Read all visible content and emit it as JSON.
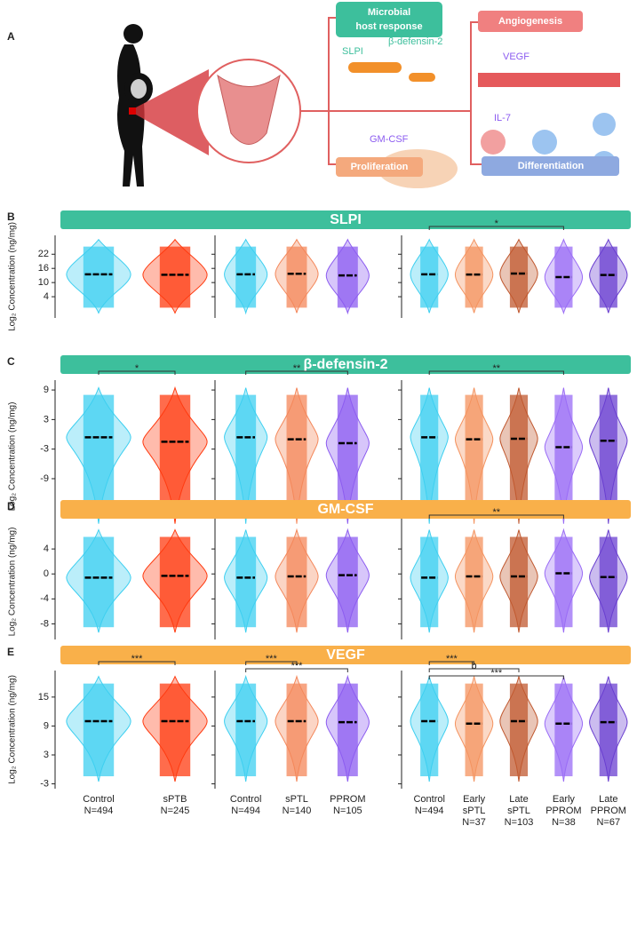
{
  "panel_a": {
    "letter": "A",
    "microbial_title": [
      "Microbial",
      "host response"
    ],
    "slpi": "SLPI",
    "bdef": "β-defensin-2",
    "angiogenesis": "Angiogenesis",
    "vegf": "VEGF",
    "gmcsf": "GM-CSF",
    "il7": "IL-7",
    "proliferation": "Proliferation",
    "differentiation": "Differentiation"
  },
  "x_labels": [
    [
      [
        "Control",
        "N=494"
      ],
      [
        "sPTB",
        "N=245"
      ]
    ],
    [
      [
        "Control",
        "N=494"
      ],
      [
        "sPTL",
        "N=140"
      ],
      [
        "PPROM",
        "N=105"
      ]
    ],
    [
      [
        "Control",
        "N=494"
      ],
      [
        "Early",
        "sPTL",
        "N=37"
      ],
      [
        "Late",
        "sPTL",
        "N=103"
      ],
      [
        "Early",
        "PPROM",
        "N=38"
      ],
      [
        "Late",
        "PPROM",
        "N=67"
      ]
    ]
  ],
  "chart_data": [
    {
      "type": "violin",
      "panel": "B",
      "title": "SLPI",
      "title_color": "#3dbf9c",
      "ylabel": "Log₂ Concentration (ng/mg)",
      "ylim": [
        -5,
        30
      ],
      "yticks": [
        4,
        10,
        16,
        22
      ],
      "groups": [
        {
          "colors": [
            "#3dcff0",
            "#ff3b10"
          ],
          "medians": [
            13.5,
            13.3
          ]
        },
        {
          "colors": [
            "#3dcff0",
            "#f4875a",
            "#8c5cf0"
          ],
          "medians": [
            13.5,
            13.7,
            13
          ]
        },
        {
          "colors": [
            "#3dcff0",
            "#f4935f",
            "#c0582f",
            "#9a6cf5",
            "#6a3fd0"
          ],
          "medians": [
            13.5,
            13.4,
            13.8,
            12.3,
            13.2
          ]
        }
      ],
      "comparisons": [
        {
          "group": 2,
          "between": [
            0,
            3
          ],
          "label": "*"
        }
      ]
    },
    {
      "type": "violin",
      "panel": "C",
      "title": "β-defensin-2",
      "title_color": "#3dbf9c",
      "ylabel": "Log₂ Concentration (ng/mg)",
      "ylim": [
        -20,
        11
      ],
      "yticks": [
        9,
        3,
        -3,
        -9
      ],
      "groups": [
        {
          "colors": [
            "#3dcff0",
            "#ff3b10"
          ],
          "medians": [
            -0.6,
            -1.5
          ]
        },
        {
          "colors": [
            "#3dcff0",
            "#f4875a",
            "#8c5cf0"
          ],
          "medians": [
            -0.6,
            -1,
            -1.8
          ]
        },
        {
          "colors": [
            "#3dcff0",
            "#f4935f",
            "#c0582f",
            "#9a6cf5",
            "#6a3fd0"
          ],
          "medians": [
            -0.6,
            -1,
            -0.9,
            -2.6,
            -1.3
          ]
        }
      ],
      "comparisons": [
        {
          "group": 0,
          "between": [
            0,
            1
          ],
          "label": "*"
        },
        {
          "group": 1,
          "between": [
            0,
            2
          ],
          "label": "**"
        },
        {
          "group": 2,
          "between": [
            0,
            3
          ],
          "label": "**"
        }
      ]
    },
    {
      "type": "violin",
      "panel": "D",
      "title": "GM-CSF",
      "title_color": "#f9b04a",
      "ylabel": "Log₂ Concentration (ng/mg)",
      "ylim": [
        -10.5,
        8
      ],
      "yticks": [
        4,
        0,
        -4,
        -8
      ],
      "groups": [
        {
          "colors": [
            "#3dcff0",
            "#ff3b10"
          ],
          "medians": [
            -0.6,
            -0.3
          ]
        },
        {
          "colors": [
            "#3dcff0",
            "#f4875a",
            "#8c5cf0"
          ],
          "medians": [
            -0.6,
            -0.4,
            -0.2
          ]
        },
        {
          "colors": [
            "#3dcff0",
            "#f4935f",
            "#c0582f",
            "#9a6cf5",
            "#6a3fd0"
          ],
          "medians": [
            -0.6,
            -0.4,
            -0.4,
            0.1,
            -0.5
          ]
        }
      ],
      "comparisons": [
        {
          "group": 2,
          "between": [
            0,
            3
          ],
          "label": "**"
        }
      ]
    },
    {
      "type": "violin",
      "panel": "E",
      "title": "VEGF",
      "title_color": "#f9b04a",
      "ylabel": "Log₂ Concentration (ng/mg)",
      "ylim": [
        -4,
        20.5
      ],
      "yticks": [
        15,
        9,
        3,
        -3
      ],
      "groups": [
        {
          "colors": [
            "#3dcff0",
            "#ff3b10"
          ],
          "medians": [
            10,
            10
          ]
        },
        {
          "colors": [
            "#3dcff0",
            "#f4875a",
            "#8c5cf0"
          ],
          "medians": [
            10,
            10,
            9.8
          ]
        },
        {
          "colors": [
            "#3dcff0",
            "#f4935f",
            "#c0582f",
            "#9a6cf5",
            "#6a3fd0"
          ],
          "medians": [
            10,
            9.5,
            10,
            9.5,
            9.8
          ]
        }
      ],
      "comparisons": [
        {
          "group": 0,
          "between": [
            0,
            1
          ],
          "label": "***"
        },
        {
          "group": 1,
          "between": [
            0,
            1
          ],
          "label": "***"
        },
        {
          "group": 1,
          "between": [
            0,
            2
          ],
          "label": "***"
        },
        {
          "group": 2,
          "between": [
            0,
            1
          ],
          "label": "***"
        },
        {
          "group": 2,
          "between": [
            0,
            2
          ],
          "label": "b"
        },
        {
          "group": 2,
          "between": [
            0,
            3
          ],
          "label": "***"
        }
      ]
    }
  ]
}
